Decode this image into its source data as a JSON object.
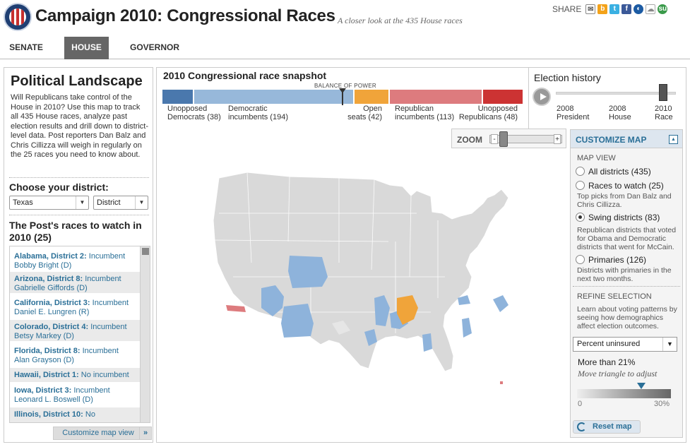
{
  "header": {
    "title": "Campaign 2010: Congressional Races",
    "subtitle": "A closer look at the 435 House races",
    "share_label": "SHARE",
    "share_icons": [
      "email-icon",
      "buzz-icon",
      "twitter-icon",
      "facebook-icon",
      "digg-icon",
      "delicious-icon",
      "stumbleupon-icon"
    ]
  },
  "nav": {
    "tabs": [
      {
        "label": "SENATE"
      },
      {
        "label": "HOUSE"
      },
      {
        "label": "GOVERNOR"
      }
    ]
  },
  "left": {
    "title": "Political Landscape",
    "intro": "Will Republicans take control of the House in 2010? Use this map to track all 435 House races, analyze past election results and drill down to district-level data. Post reporters Dan Balz and Chris Cillizza will weigh in regularly on the 25 races you need to know about.",
    "choose_label": "Choose your district:",
    "state_select": "Texas",
    "district_select": "District",
    "races_title": "The Post's races to watch in 2010 (25)",
    "races": [
      {
        "district": "Alabama, District 2:",
        "status": "Incumbent",
        "name": "Bobby Bright (D)"
      },
      {
        "district": "Arizona, District 8:",
        "status": "Incumbent",
        "name": "Gabrielle Giffords (D)"
      },
      {
        "district": "California, District 3:",
        "status": "Incumbent",
        "name": "Daniel E. Lungren (R)"
      },
      {
        "district": "Colorado, District 4:",
        "status": "Incumbent",
        "name": "Betsy Markey (D)"
      },
      {
        "district": "Florida, District 8:",
        "status": "Incumbent",
        "name": "Alan Grayson (D)"
      },
      {
        "district": "Hawaii, District 1:",
        "status": "No incumbent",
        "name": ""
      },
      {
        "district": "Iowa, District 3:",
        "status": "Incumbent",
        "name": "Leonard L. Boswell (D)"
      },
      {
        "district": "Illinois, District 10:",
        "status": "No",
        "name": ""
      }
    ],
    "customize_link": "Customize map view",
    "customize_arrow": "»"
  },
  "snapshot": {
    "title": "2010 Congressional race snapshot",
    "balance_label": "BALANCE OF POWER",
    "segments": [
      {
        "label1": "Unopposed",
        "label2": "Democrats (38)",
        "color": "#4a78ad"
      },
      {
        "label1": "Democratic",
        "label2": "incumbents (194)",
        "color": "#97b8da"
      },
      {
        "label1": "Open",
        "label2": "seats (42)",
        "color": "#f0a43a"
      },
      {
        "label1": "Republican",
        "label2": "incumbents (113)",
        "color": "#dd7b7e"
      },
      {
        "label1": "Unopposed",
        "label2": "Republicans (48)",
        "color": "#cc3333"
      }
    ]
  },
  "history": {
    "title": "Election history",
    "stops": [
      {
        "line1": "2008",
        "line2": "President"
      },
      {
        "line1": "2008",
        "line2": "House"
      },
      {
        "line1": "2010",
        "line2": "Race"
      }
    ]
  },
  "zoom": {
    "label": "ZOOM",
    "minus": "-",
    "plus": "+"
  },
  "customize": {
    "title": "CUSTOMIZE MAP",
    "map_view_label": "MAP VIEW",
    "options": [
      {
        "label": "All districts (435)",
        "desc": "",
        "selected": false
      },
      {
        "label": "Races to watch (25)",
        "desc": "Top picks from Dan Balz and Chris Cillizza.",
        "selected": false
      },
      {
        "label": "Swing districts (83)",
        "desc": "Republican districts that voted for Obama and Democratic districts that went for McCain.",
        "selected": true
      },
      {
        "label": "Primaries (126)",
        "desc": "Districts with primaries in the next two months.",
        "selected": false
      }
    ],
    "refine_label": "REFINE SELECTION",
    "refine_desc": "Learn about voting patterns by seeing how demographics affect election outcomes.",
    "dropdown": "Percent uninsured",
    "threshold_text": "More than 21%",
    "hint": "Move triangle to adjust",
    "range_min": "0",
    "range_max": "30%",
    "threshold_value": 21,
    "reset_label": "Reset map"
  }
}
